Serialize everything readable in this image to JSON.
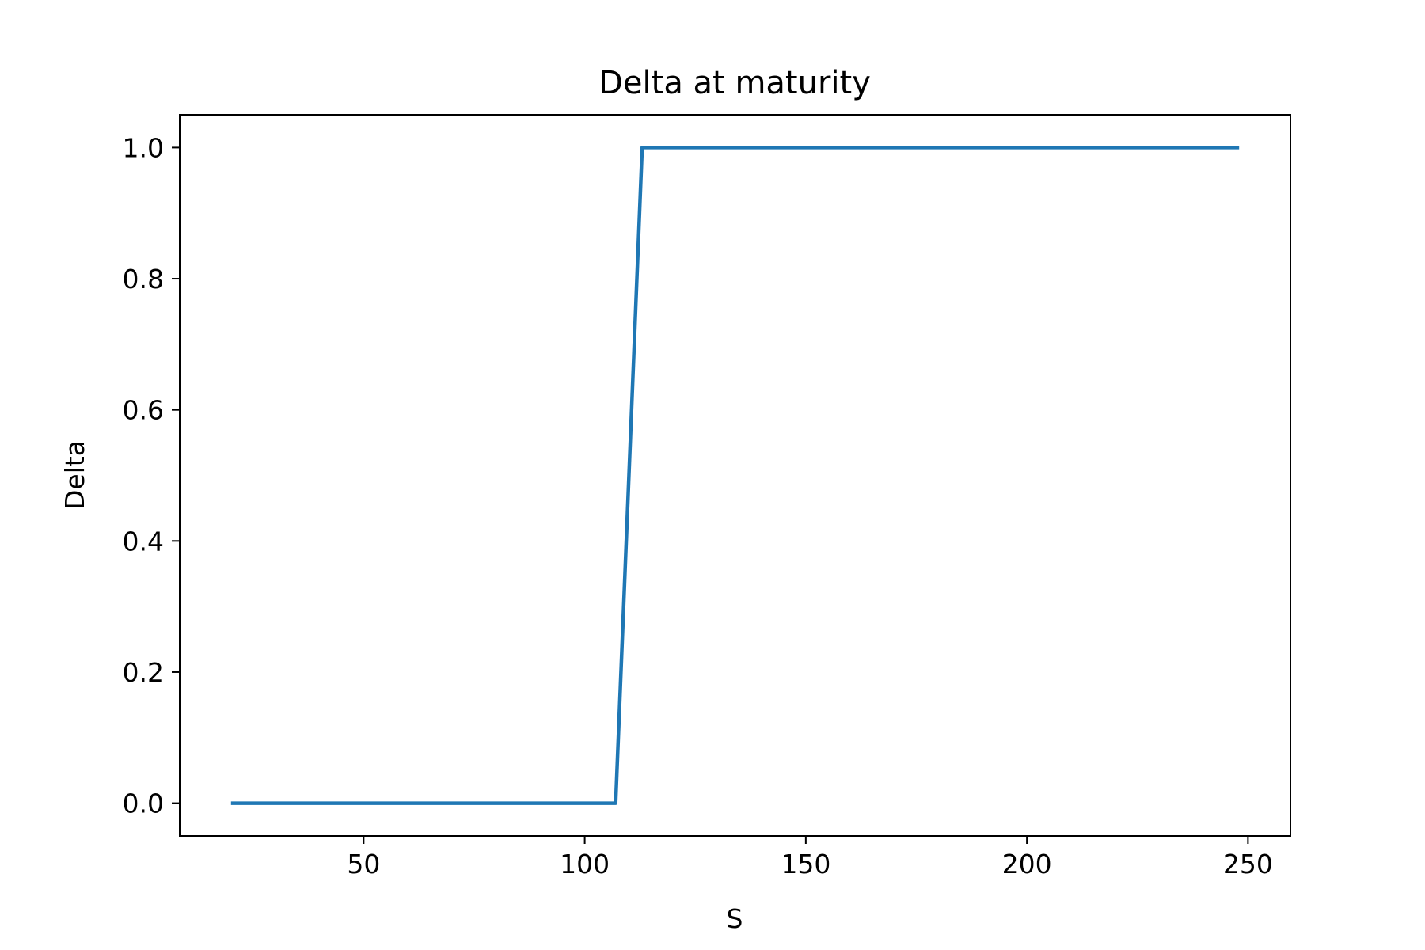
{
  "chart_data": {
    "type": "line",
    "title": "Delta at maturity",
    "xlabel": "S",
    "ylabel": "Delta",
    "xlim": [
      8.4,
      259.6
    ],
    "ylim": [
      -0.05,
      1.05
    ],
    "xticks": [
      50,
      100,
      150,
      200,
      250
    ],
    "xtick_labels": [
      "50",
      "100",
      "150",
      "200",
      "250"
    ],
    "yticks": [
      0.0,
      0.2,
      0.4,
      0.6,
      0.8,
      1.0
    ],
    "ytick_labels": [
      "0.0",
      "0.2",
      "0.4",
      "0.6",
      "0.8",
      "1.0"
    ],
    "grid": false,
    "legend": "none",
    "series": [
      {
        "color": "#1f77b4",
        "x": [
          20,
          107,
          113,
          248
        ],
        "y": [
          0.0,
          0.0,
          1.0,
          1.0
        ]
      }
    ]
  }
}
